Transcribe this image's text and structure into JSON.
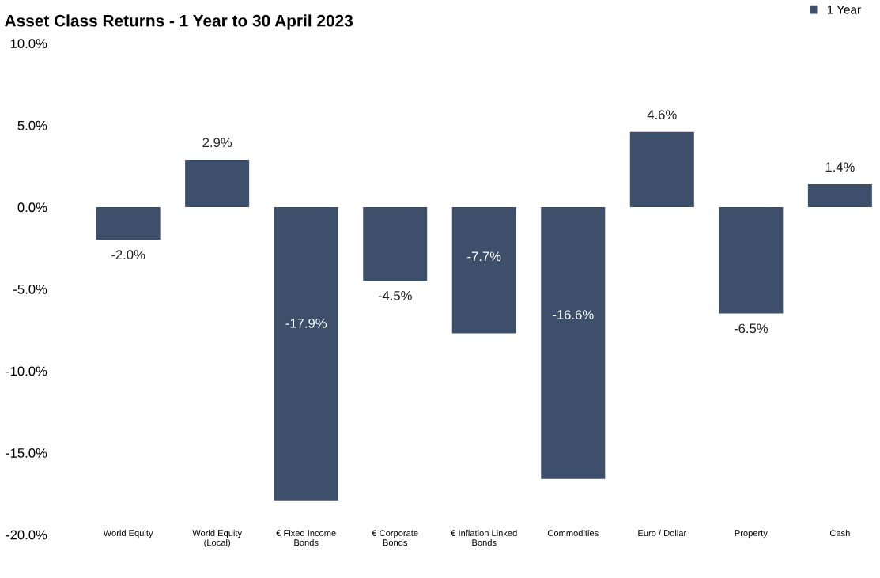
{
  "chart_data": {
    "type": "bar",
    "title": "Asset Class Returns - 1 Year to 30 April 2023",
    "categories": [
      "World Equity",
      "World Equity\n(Local)",
      "€ Fixed Income\nBonds",
      "€ Corporate\nBonds",
      "€ Inflation Linked\nBonds",
      "Commodities",
      "Euro / Dollar",
      "Property",
      "Cash"
    ],
    "series": [
      {
        "name": "1 Year",
        "color": "#3d4f6b",
        "values": [
          -2.0,
          2.9,
          -17.9,
          -4.5,
          -7.7,
          -16.6,
          4.6,
          -6.5,
          1.4
        ],
        "value_labels": [
          "-2.0%",
          "2.9%",
          "-17.9%",
          "-4.5%",
          "-7.7%",
          "-16.6%",
          "4.6%",
          "-6.5%",
          "1.4%"
        ]
      }
    ],
    "ylim": [
      -20,
      10
    ],
    "yticks": [
      {
        "value": -20,
        "label": "-20.0%"
      },
      {
        "value": -15,
        "label": "-15.0%"
      },
      {
        "value": -10,
        "label": "-10.0%"
      },
      {
        "value": -5,
        "label": "-5.0%"
      },
      {
        "value": 0,
        "label": "0.0%"
      },
      {
        "value": 5,
        "label": "5.0%"
      },
      {
        "value": 10,
        "label": "10.0%"
      }
    ],
    "grid": false,
    "legend": "top right"
  }
}
